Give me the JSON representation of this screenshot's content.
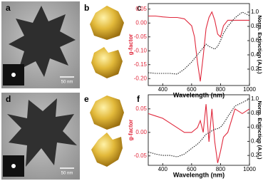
{
  "panels": {
    "labels": [
      "a",
      "b",
      "c",
      "d",
      "e",
      "f"
    ],
    "scale_bars": [
      "50 nm",
      "50 nm"
    ]
  },
  "chart_data": [
    {
      "type": "line",
      "x_label": "Wavelength (nm)",
      "y_label": "g-factor",
      "y2_label": "Norm. Extinction (A.U.)",
      "xlim": [
        300,
        1000
      ],
      "xticks": [
        400,
        600,
        800,
        1000
      ],
      "ylim": [
        -0.225,
        0.07
      ],
      "yticks": [
        0.05,
        {
          "value": 0,
          "label": "0.00"
        },
        -0.05,
        {
          "value": -0.1,
          "label": "-0.10"
        },
        -0.15,
        {
          "value": -0.2,
          "label": "-0.20"
        }
      ],
      "y2lim": [
        -0.03,
        1.12
      ],
      "y2ticks": [
        0.2,
        0.4,
        0.6,
        0.8,
        {
          "value": 1,
          "label": "1.0"
        }
      ],
      "x": [
        300,
        350,
        400,
        450,
        500,
        550,
        600,
        620,
        640,
        660,
        680,
        700,
        720,
        740,
        760,
        780,
        800,
        820,
        850,
        900,
        950,
        1000
      ],
      "series": [
        {
          "color": "#e0283c",
          "linestyle": "solid",
          "values": [
            0.025,
            0.025,
            0.022,
            0.02,
            0.02,
            0.015,
            -0.01,
            -0.05,
            -0.14,
            -0.21,
            -0.12,
            -0.02,
            0.02,
            0.04,
            0.01,
            -0.04,
            -0.05,
            -0.01,
            0.01,
            0.01,
            0.01,
            0.01
          ]
        },
        {
          "color": "#222222",
          "linestyle": "dotted",
          "axis": "y2",
          "values": [
            0.15,
            0.14,
            0.14,
            0.14,
            0.13,
            0.2,
            0.3,
            0.35,
            0.4,
            0.45,
            0.5,
            0.55,
            0.52,
            0.5,
            0.48,
            0.52,
            0.6,
            0.7,
            0.8,
            0.92,
            1.0,
            0.95
          ]
        }
      ]
    },
    {
      "type": "line",
      "x_label": "Wavelength (nm)",
      "y_label": "g-factor",
      "y2_label": "Norm. Extinction (A.U.)",
      "xlim": [
        300,
        1000
      ],
      "xticks": [
        400,
        600,
        800,
        1000
      ],
      "ylim": [
        -0.07,
        0.08
      ],
      "yticks": [
        0.05,
        {
          "value": 0,
          "label": "0.00"
        },
        -0.05
      ],
      "y2lim": [
        0.06,
        1.06
      ],
      "y2ticks": [
        0.2,
        0.4,
        0.6,
        0.8,
        {
          "value": 1,
          "label": "1.0"
        }
      ],
      "x": [
        300,
        350,
        400,
        450,
        500,
        550,
        600,
        620,
        640,
        660,
        680,
        700,
        720,
        740,
        760,
        780,
        800,
        820,
        850,
        900,
        950,
        1000
      ],
      "series": [
        {
          "color": "#e0283c",
          "linestyle": "solid",
          "values": [
            0.04,
            0.035,
            0.03,
            0.02,
            0.01,
            0,
            0,
            0.005,
            0.01,
            0.025,
            0,
            0.06,
            -0.02,
            0.05,
            -0.02,
            -0.065,
            -0.04,
            -0.01,
            0,
            0.05,
            0.04,
            0.05
          ]
        },
        {
          "color": "#222222",
          "linestyle": "dotted",
          "axis": "y2",
          "values": [
            0.25,
            0.22,
            0.2,
            0.2,
            0.18,
            0.22,
            0.3,
            0.33,
            0.36,
            0.4,
            0.45,
            0.5,
            0.52,
            0.55,
            0.57,
            0.58,
            0.6,
            0.65,
            0.75,
            0.9,
            0.95,
            1.0
          ]
        }
      ]
    }
  ]
}
